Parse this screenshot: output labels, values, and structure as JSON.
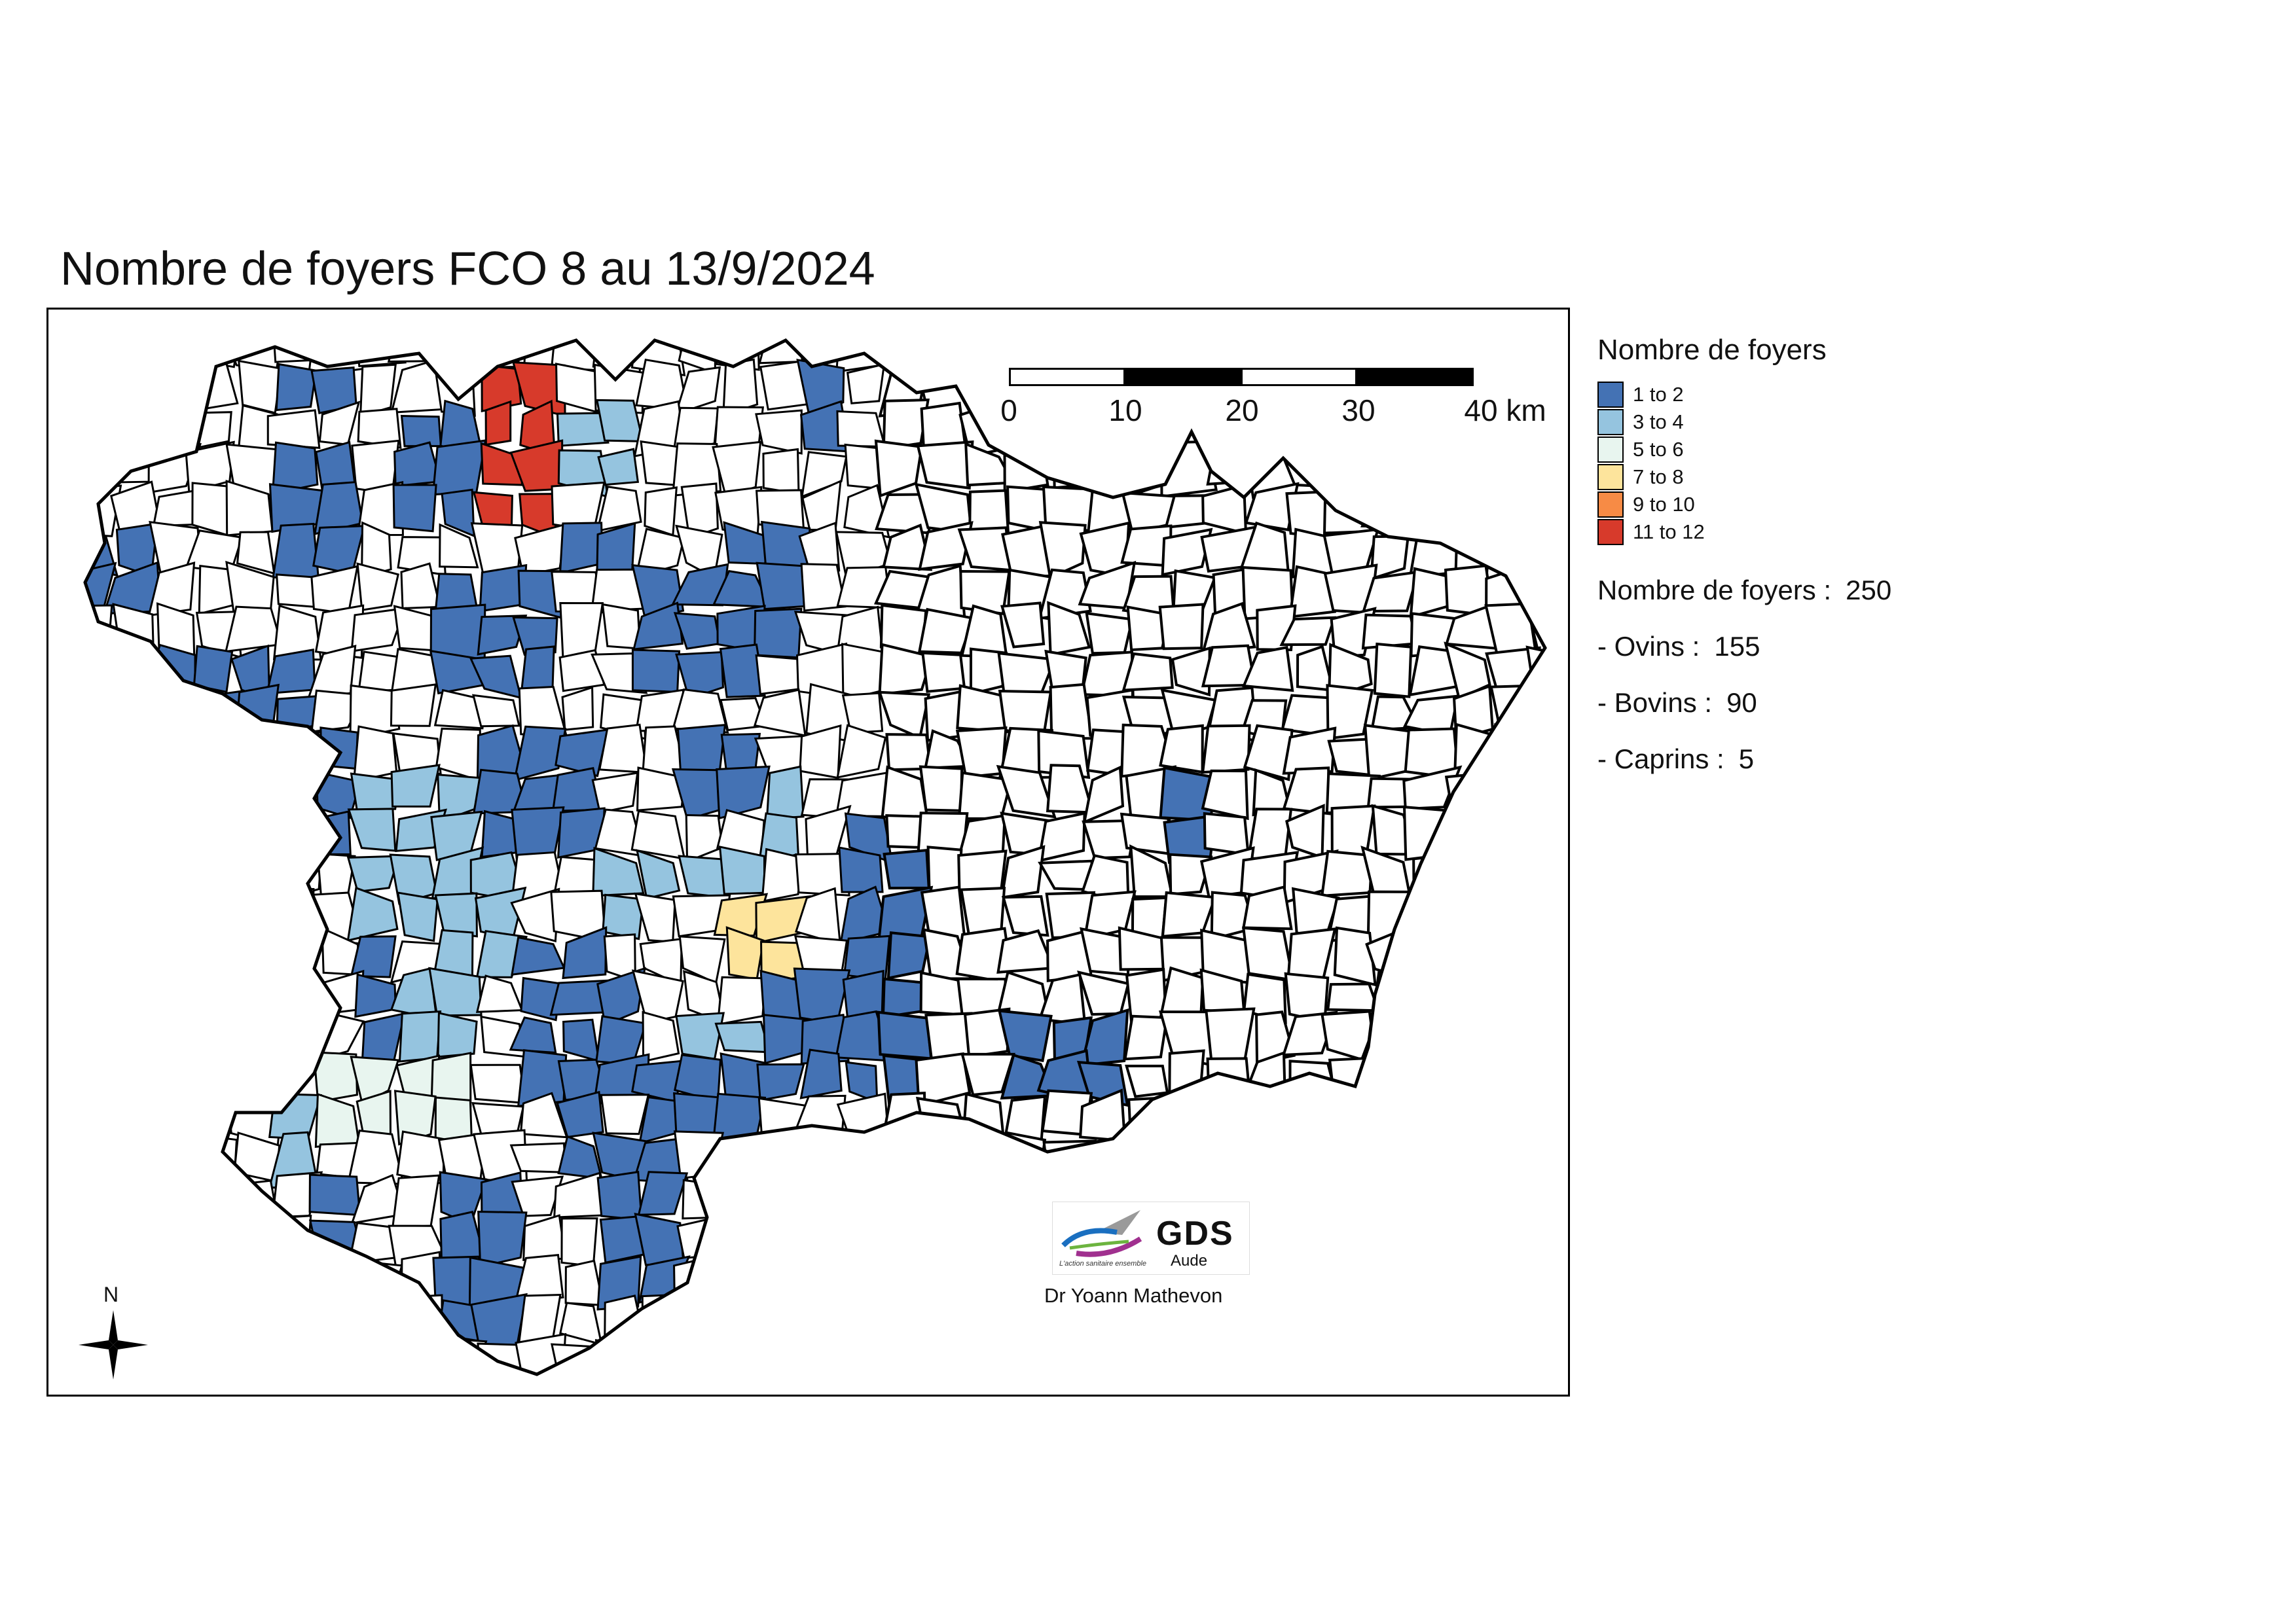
{
  "title": "Nombre de foyers FCO 8 au 13/9/2024",
  "legend": {
    "title": "Nombre de foyers",
    "classes": [
      {
        "label": "1 to 2",
        "color": "#4472b4"
      },
      {
        "label": "3 to 4",
        "color": "#95c4df"
      },
      {
        "label": "5 to 6",
        "color": "#e8f5ef"
      },
      {
        "label": "7 to 8",
        "color": "#fde49c"
      },
      {
        "label": "9 to 10",
        "color": "#f78b45"
      },
      {
        "label": "11 to 12",
        "color": "#d73a2b"
      }
    ]
  },
  "stats": {
    "total_label": "Nombre de foyers :",
    "total_value": "250",
    "ovins_label": "- Ovins :",
    "ovins_value": "155",
    "bovins_label": "- Bovins :",
    "bovins_value": "90",
    "caprins_label": "- Caprins :",
    "caprins_value": "5"
  },
  "scale": {
    "ticks": [
      "0",
      "10",
      "20",
      "30",
      "40 km"
    ]
  },
  "north_label": "N",
  "logo": {
    "name": "GDS",
    "sub": "Aude",
    "tagline": "L'action sanitaire ensemble"
  },
  "author": "Dr Yoann Mathevon",
  "colors": {
    "none": "#ffffff",
    "border": "#000000"
  }
}
